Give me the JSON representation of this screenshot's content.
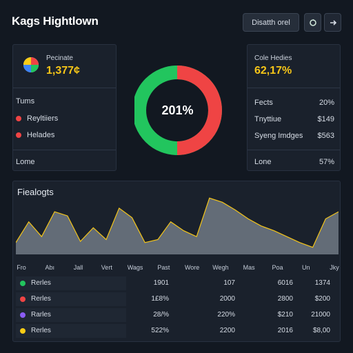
{
  "app": {
    "title": "Kags Hightlown"
  },
  "header": {
    "primary_button": "Disatth orel",
    "icon1": "refresh-icon",
    "icon2": "arrow-icon"
  },
  "kpi_left": {
    "label": "Pecinate",
    "value": "1,377¢",
    "rows": [
      {
        "label": "Tums"
      },
      {
        "label": "Reyltiiers",
        "color": "#ef4444"
      },
      {
        "label": "Helades",
        "color": "#ef4444"
      },
      {
        "label": "Lome"
      }
    ]
  },
  "kpi_right": {
    "label": "Cole Hedies",
    "value": "62,17%",
    "rows": [
      {
        "label": "Fects",
        "value": "20%"
      },
      {
        "label": "Tnyttiue",
        "value": "$149"
      },
      {
        "label": "Syeng Imdges",
        "value": "$563"
      },
      {
        "label": "Lone",
        "value": "57%"
      }
    ]
  },
  "donut": {
    "center_label": "201%",
    "green_fraction": 0.5,
    "colors": {
      "green": "#22c55e",
      "red": "#ef4444"
    }
  },
  "area": {
    "title": "Fiealogts",
    "x_labels": [
      "Fro",
      "Abı",
      "Jall",
      "Vert",
      "Wags",
      "Past",
      "Wore",
      "Wegh",
      "Mas",
      "Poa",
      "Un",
      "Jky"
    ]
  },
  "chart_data": {
    "type": "area",
    "title": "Fiealogts",
    "values": [
      0.2,
      0.55,
      0.3,
      0.72,
      0.65,
      0.22,
      0.45,
      0.25,
      0.78,
      0.62,
      0.2,
      0.25,
      0.55,
      0.4,
      0.3,
      0.95,
      0.88,
      0.75,
      0.6,
      0.48,
      0.4,
      0.3,
      0.2,
      0.12,
      0.6,
      0.72
    ],
    "ylim": [
      0,
      1
    ],
    "color": "#f5c518"
  },
  "table": {
    "rows": [
      {
        "name": "Rerles",
        "color": "#22c55e",
        "v1": "1901",
        "v2": "107",
        "v3": "6016",
        "v4": "1374"
      },
      {
        "name": "Rerles",
        "color": "#ef4444",
        "v1": "1£8%",
        "v2": "2000",
        "v3": "2800",
        "v4": "$200"
      },
      {
        "name": "Rarles",
        "color": "#8b5cf6",
        "v1": "28/%",
        "v2": "220%",
        "v3": "$210",
        "v4": "21000"
      },
      {
        "name": "Rerles",
        "color": "#facc15",
        "v1": "522%",
        "v2": "2200",
        "v3": "2016",
        "v4": "$8,00"
      }
    ]
  }
}
